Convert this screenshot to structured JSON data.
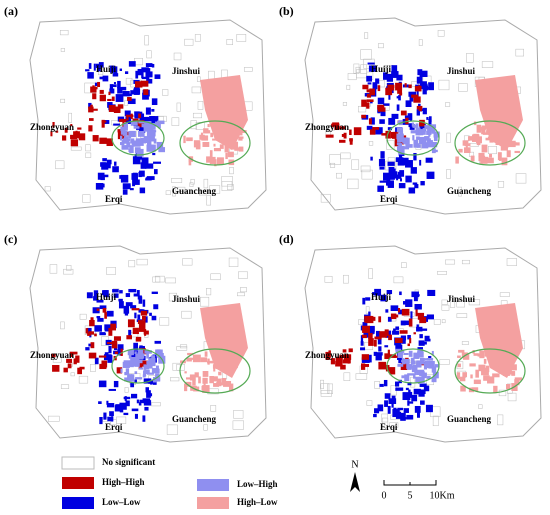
{
  "panels": [
    {
      "label": "(a)",
      "districts": [
        "Huiji",
        "Jinshui",
        "Zhongyuan",
        "Guancheng",
        "Erqi"
      ]
    },
    {
      "label": "(b)",
      "districts": [
        "Huiji",
        "Jinshui",
        "Zhongyuan",
        "Guancheng",
        "Erqi"
      ]
    },
    {
      "label": "(c)",
      "districts": [
        "Huiji",
        "Jinshui",
        "Zhongyuan",
        "Guancheng",
        "Erqi"
      ]
    },
    {
      "label": "(d)",
      "districts": [
        "Huiji",
        "Jinshui",
        "Zhongyuan",
        "Guancheng",
        "Erqi"
      ]
    }
  ],
  "legend": [
    {
      "label": "No significant",
      "color": "#ffffff"
    },
    {
      "label": "High–High",
      "color": "#c00000"
    },
    {
      "label": "Low–Low",
      "color": "#0000e0"
    },
    {
      "label": "Low–High",
      "color": "#8f8ff0"
    },
    {
      "label": "High–Low",
      "color": "#f4a0a0"
    }
  ],
  "north": "N",
  "scale_bar": [
    "0",
    "5",
    "10Km"
  ]
}
